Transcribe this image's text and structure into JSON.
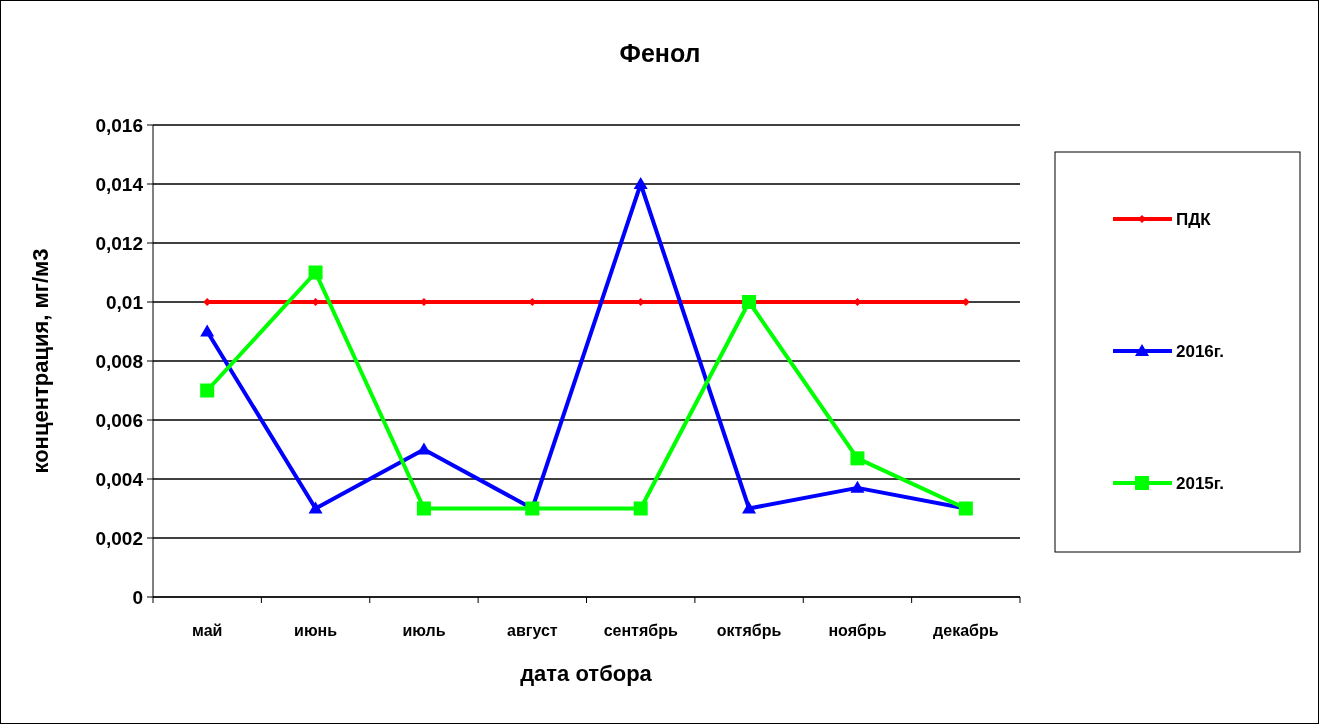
{
  "chart_data": {
    "type": "line",
    "title": "Фенол",
    "xlabel": "дата отбора",
    "ylabel": "концентрация, мг/м3",
    "categories": [
      "май",
      "июнь",
      "июль",
      "август",
      "сентябрь",
      "октябрь",
      "ноябрь",
      "декабрь"
    ],
    "series": [
      {
        "name": "ПДК",
        "color": "#ff0000",
        "marker": "diamond",
        "values": [
          0.01,
          0.01,
          0.01,
          0.01,
          0.01,
          0.01,
          0.01,
          0.01
        ]
      },
      {
        "name": "2016г.",
        "color": "#0000ff",
        "marker": "triangle",
        "values": [
          0.009,
          0.003,
          0.005,
          0.003,
          0.014,
          0.003,
          0.0037,
          0.003
        ]
      },
      {
        "name": "2015г.",
        "color": "#00ff00",
        "marker": "square",
        "values": [
          0.007,
          0.011,
          0.003,
          0.003,
          0.003,
          0.01,
          0.0047,
          0.003
        ]
      }
    ],
    "ylim": [
      0,
      0.016
    ],
    "yticks": [
      {
        "value": 0,
        "label": "0"
      },
      {
        "value": 0.002,
        "label": "0,002"
      },
      {
        "value": 0.004,
        "label": "0,004"
      },
      {
        "value": 0.006,
        "label": "0,006"
      },
      {
        "value": 0.008,
        "label": "0,008"
      },
      {
        "value": 0.01,
        "label": "0,01"
      },
      {
        "value": 0.012,
        "label": "0,012"
      },
      {
        "value": 0.014,
        "label": "0,014"
      },
      {
        "value": 0.016,
        "label": "0,016"
      }
    ],
    "grid": "y",
    "legend": "right",
    "line_style": "solid"
  }
}
